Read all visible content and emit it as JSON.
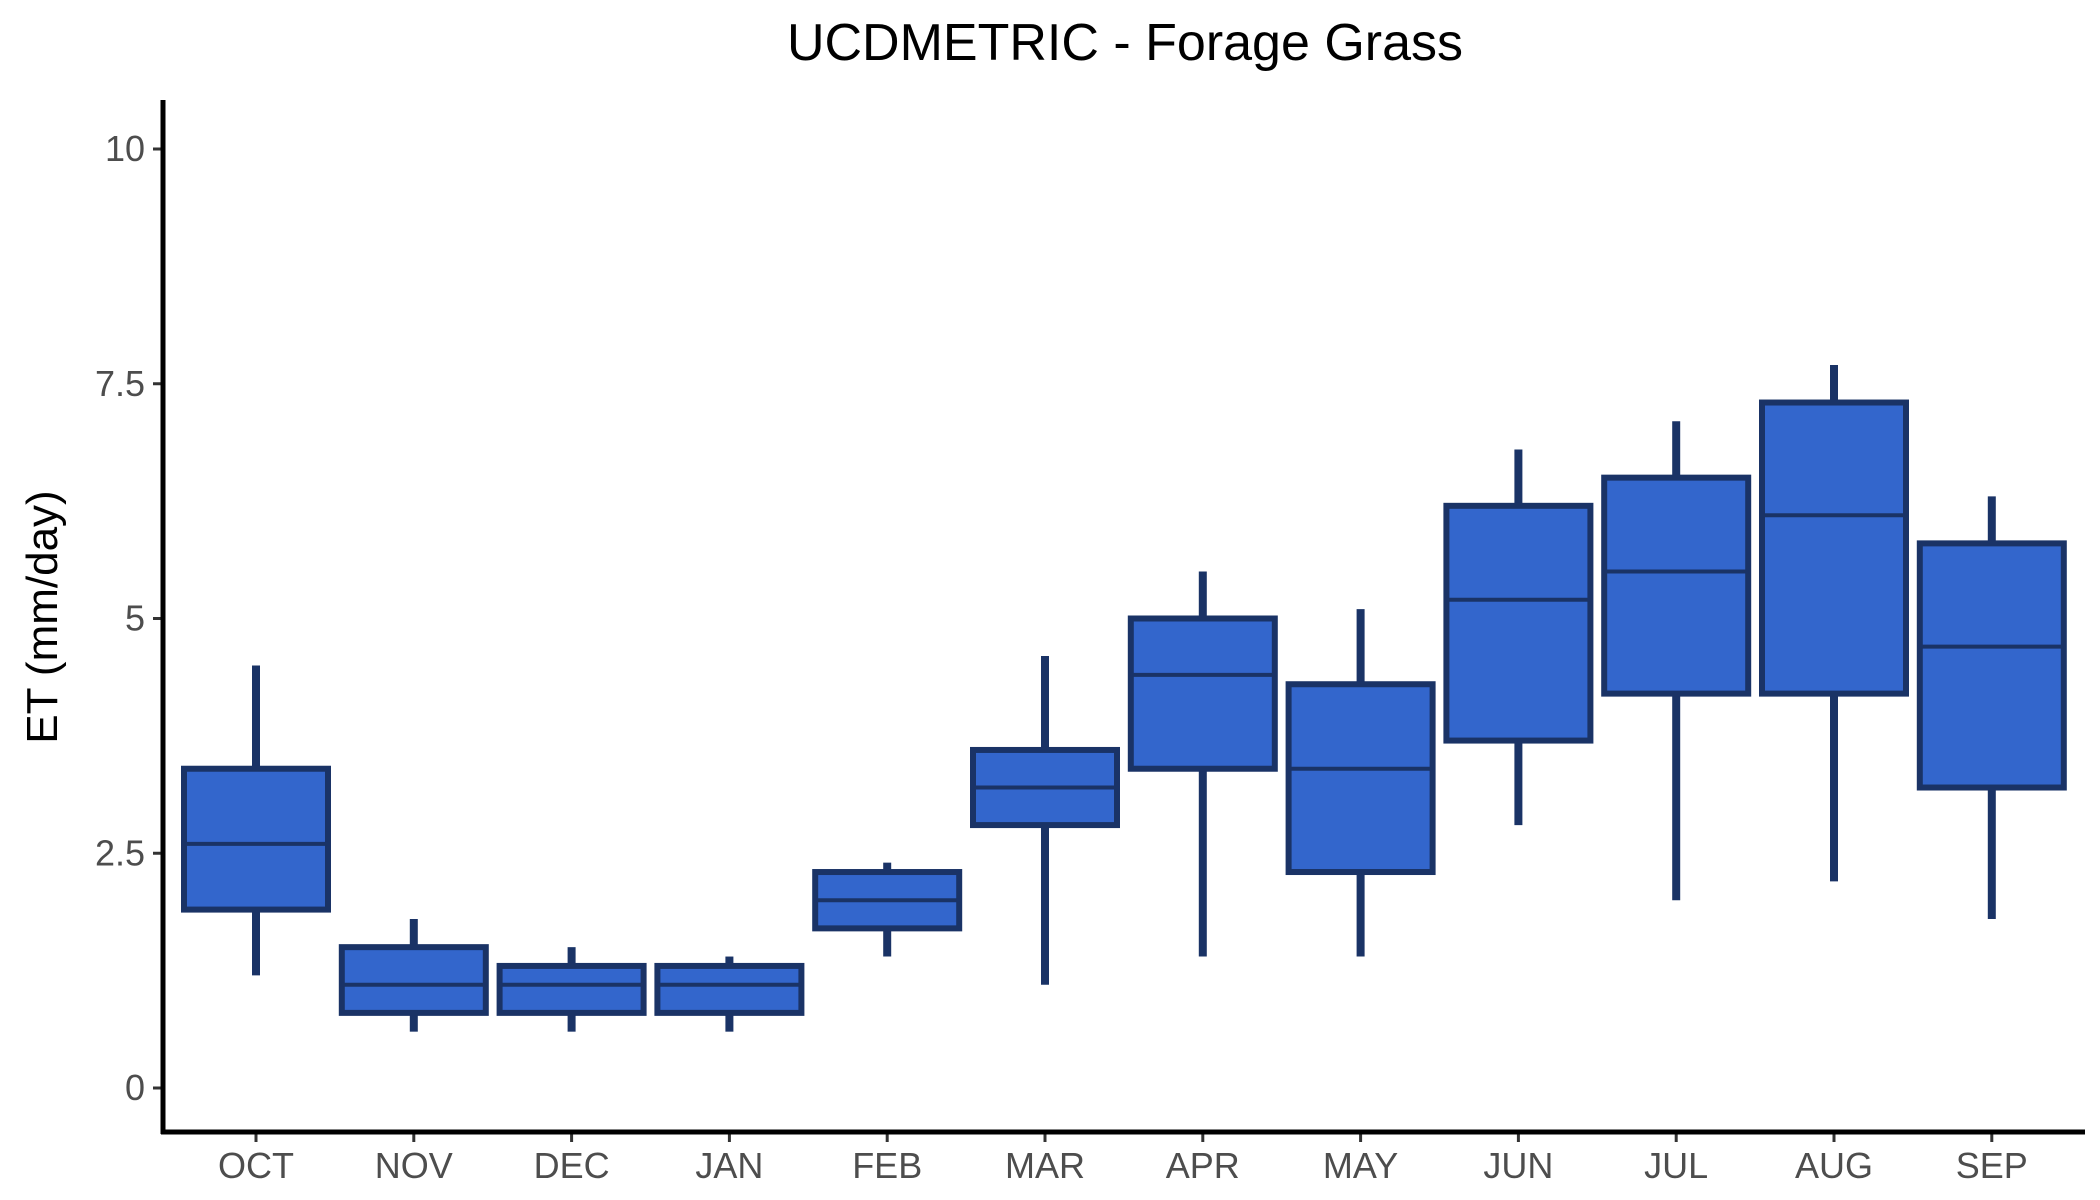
{
  "chart_data": {
    "type": "box",
    "title": "UCDMETRIC - Forage Grass",
    "xlabel": "",
    "ylabel": "ET (mm/day)",
    "ylim": [
      -0.9,
      10.5
    ],
    "yticks": [
      0,
      2.5,
      5,
      7.5,
      10
    ],
    "ytick_labels": [
      "0",
      "2.5",
      "5",
      "7.5",
      "10"
    ],
    "grid": false,
    "legend": "none",
    "categories": [
      "OCT",
      "NOV",
      "DEC",
      "JAN",
      "FEB",
      "MAR",
      "APR",
      "MAY",
      "JUN",
      "JUL",
      "AUG",
      "SEP"
    ],
    "boxes": [
      {
        "min": 1.2,
        "q1": 1.9,
        "median": 2.6,
        "q3": 3.4,
        "max": 4.5
      },
      {
        "min": 0.6,
        "q1": 0.8,
        "median": 1.1,
        "q3": 1.5,
        "max": 1.8
      },
      {
        "min": 0.6,
        "q1": 0.8,
        "median": 1.1,
        "q3": 1.3,
        "max": 1.5
      },
      {
        "min": 0.6,
        "q1": 0.8,
        "median": 1.1,
        "q3": 1.3,
        "max": 1.4
      },
      {
        "min": 1.4,
        "q1": 1.7,
        "median": 2.0,
        "q3": 2.3,
        "max": 2.4
      },
      {
        "min": 1.1,
        "q1": 2.8,
        "median": 3.2,
        "q3": 3.6,
        "max": 4.6
      },
      {
        "min": 1.4,
        "q1": 3.4,
        "median": 4.4,
        "q3": 5.0,
        "max": 5.5
      },
      {
        "min": 1.4,
        "q1": 2.3,
        "median": 3.4,
        "q3": 4.3,
        "max": 5.1
      },
      {
        "min": 2.8,
        "q1": 3.7,
        "median": 5.2,
        "q3": 6.2,
        "max": 6.8
      },
      {
        "min": 2.0,
        "q1": 4.2,
        "median": 5.5,
        "q3": 6.5,
        "max": 7.1
      },
      {
        "min": 2.2,
        "q1": 4.2,
        "median": 6.1,
        "q3": 7.3,
        "max": 7.7
      },
      {
        "min": 1.8,
        "q1": 3.2,
        "median": 4.7,
        "q3": 5.8,
        "max": 6.3
      }
    ],
    "colors": {
      "box_fill": "#3366cc",
      "box_outline": "#1a3366",
      "axis": "#000000",
      "tick_text": "#4d4d4d",
      "title_text": "#000000"
    }
  }
}
